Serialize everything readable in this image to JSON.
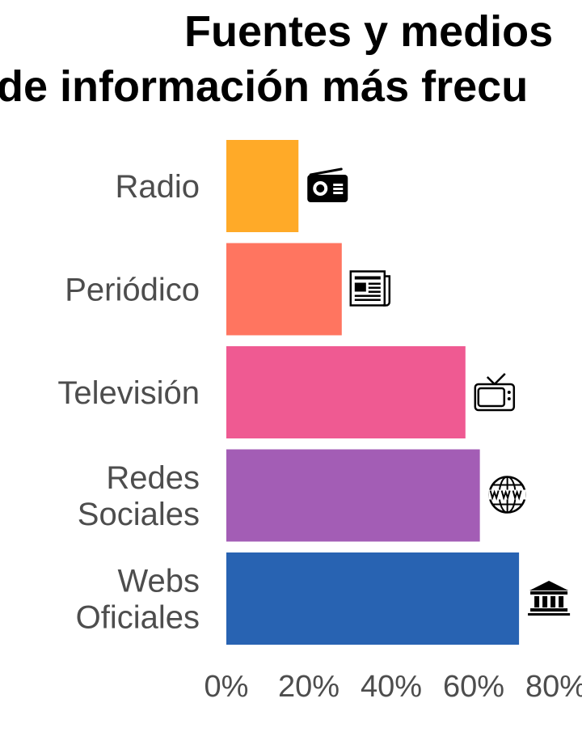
{
  "chart_data": {
    "type": "bar",
    "orientation": "horizontal",
    "title_line1": "Fuentes y medios",
    "title_line2": "de información más frecu",
    "categories": [
      {
        "lines": [
          "Radio"
        ],
        "icon": "radio-icon",
        "color": "#FFAA28"
      },
      {
        "lines": [
          "Periódico"
        ],
        "icon": "newspaper-icon",
        "color": "#FF7560"
      },
      {
        "lines": [
          "Televisión"
        ],
        "icon": "tv-icon",
        "color": "#EF5A92"
      },
      {
        "lines": [
          "Redes",
          "Sociales"
        ],
        "icon": "globe-www-icon",
        "color": "#A35DB5"
      },
      {
        "lines": [
          "Webs",
          "Oficiales"
        ],
        "icon": "government-building-icon",
        "color": "#2863B2"
      }
    ],
    "values": [
      17.5,
      28,
      58,
      61.5,
      71
    ],
    "x_ticks": [
      "0%",
      "20%",
      "40%",
      "60%",
      "80%"
    ],
    "xlim": [
      0,
      80
    ],
    "grid": false
  }
}
